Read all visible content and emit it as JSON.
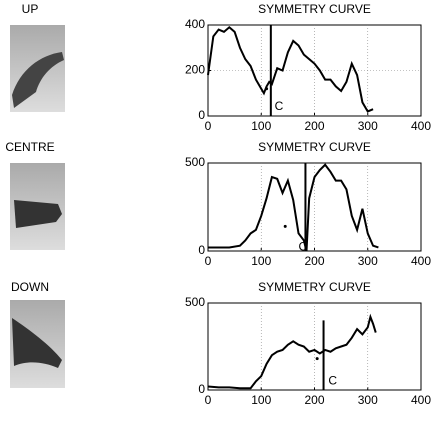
{
  "labels": [
    "UP",
    "CENTRE",
    "DOWN"
  ],
  "chart_data": [
    {
      "type": "line",
      "title": "SYMMETRY CURVE",
      "xlim": [
        0,
        400
      ],
      "xticks": [
        0,
        100,
        200,
        300,
        400
      ],
      "ylim": [
        0,
        400
      ],
      "yticks": [
        0,
        200,
        400
      ],
      "grid": true,
      "color": "#000000",
      "x": [
        0,
        10,
        20,
        30,
        40,
        50,
        60,
        70,
        80,
        90,
        100,
        105,
        110,
        115,
        120,
        130,
        140,
        150,
        160,
        170,
        180,
        190,
        200,
        210,
        220,
        230,
        240,
        250,
        260,
        270,
        280,
        290,
        300,
        310
      ],
      "values": [
        180,
        350,
        380,
        370,
        390,
        370,
        300,
        250,
        220,
        160,
        120,
        100,
        130,
        150,
        140,
        210,
        200,
        280,
        330,
        310,
        270,
        250,
        230,
        200,
        160,
        160,
        130,
        110,
        150,
        230,
        180,
        60,
        20,
        30
      ],
      "marker": {
        "x": 118,
        "y": [
          0,
          400
        ],
        "label": "C",
        "label_at": [
          125,
          40
        ]
      },
      "point": [
        110,
        120
      ]
    },
    {
      "type": "line",
      "title": "SYMMETRY CURVE",
      "xlim": [
        0,
        400
      ],
      "xticks": [
        0,
        100,
        200,
        300,
        400
      ],
      "ylim": [
        0,
        500
      ],
      "yticks": [
        0,
        500
      ],
      "grid": true,
      "color": "#000000",
      "x": [
        0,
        20,
        40,
        60,
        70,
        80,
        90,
        100,
        110,
        120,
        130,
        140,
        150,
        160,
        170,
        180,
        185,
        190,
        200,
        210,
        220,
        230,
        240,
        250,
        260,
        270,
        280,
        290,
        300,
        310,
        320
      ],
      "values": [
        20,
        20,
        20,
        30,
        60,
        100,
        120,
        200,
        300,
        420,
        410,
        330,
        400,
        290,
        100,
        60,
        0,
        300,
        420,
        460,
        490,
        450,
        400,
        400,
        350,
        200,
        120,
        240,
        100,
        30,
        20
      ],
      "marker": {
        "x": 183,
        "y": [
          0,
          500
        ],
        "label": "C",
        "label_at": [
          170,
          20
        ]
      },
      "point": [
        145,
        140
      ]
    },
    {
      "type": "line",
      "title": "SYMMETRY CURVE",
      "xlim": [
        0,
        400
      ],
      "xticks": [
        0,
        100,
        200,
        300,
        400
      ],
      "ylim": [
        0,
        500
      ],
      "yticks": [
        0,
        500
      ],
      "grid": true,
      "color": "#000000",
      "x": [
        0,
        20,
        40,
        60,
        80,
        90,
        100,
        110,
        120,
        130,
        140,
        150,
        160,
        170,
        180,
        190,
        200,
        210,
        220,
        230,
        240,
        250,
        260,
        270,
        280,
        290,
        300,
        305,
        310,
        315
      ],
      "values": [
        20,
        15,
        15,
        10,
        10,
        50,
        80,
        150,
        200,
        220,
        230,
        260,
        280,
        260,
        250,
        220,
        230,
        210,
        230,
        220,
        240,
        250,
        260,
        300,
        350,
        320,
        360,
        420,
        380,
        330
      ],
      "marker": {
        "x": 217,
        "y": [
          0,
          400
        ],
        "label": "C",
        "label_at": [
          226,
          50
        ]
      },
      "point": [
        205,
        180
      ]
    }
  ]
}
